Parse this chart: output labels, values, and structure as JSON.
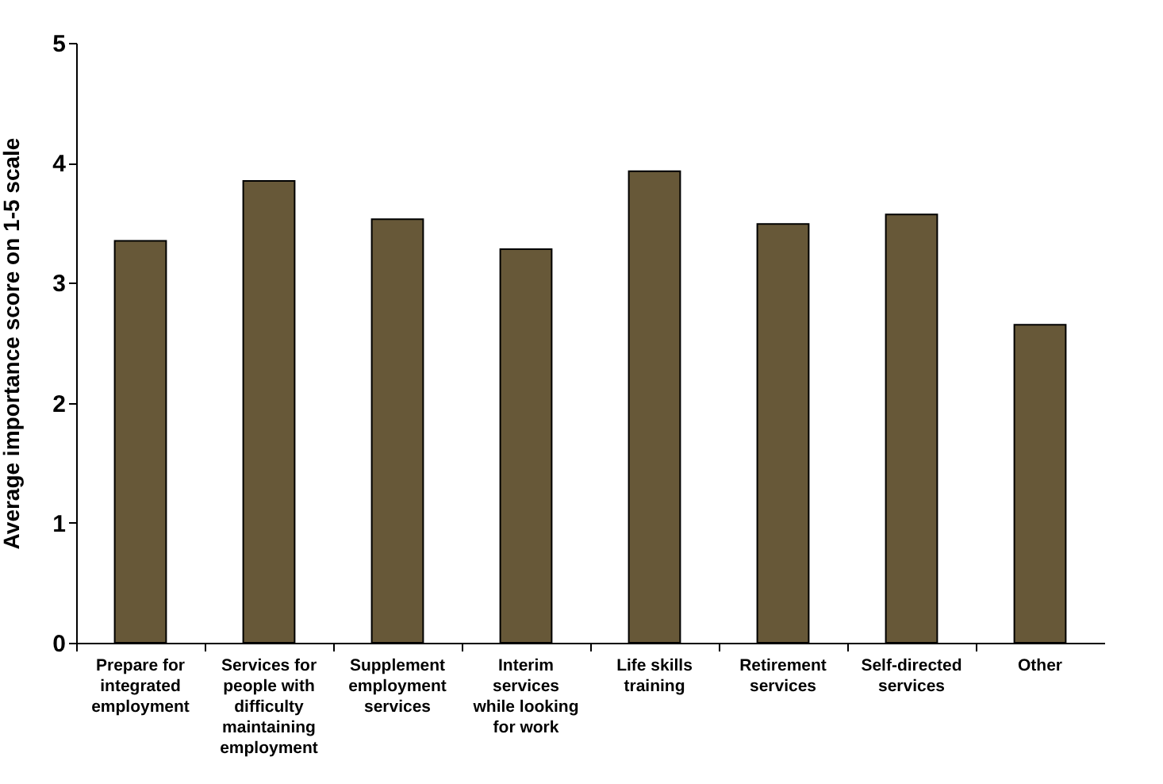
{
  "chart_data": {
    "type": "bar",
    "ylabel": "Average importance score on 1-5 scale",
    "categories": [
      "Prepare for integrated employment",
      "Services for people with difficulty maintaining employment",
      "Supplement employment services",
      "Interim services while looking for work",
      "Life skills training",
      "Retirement services",
      "Self-directed services",
      "Other"
    ],
    "values": [
      3.35,
      3.85,
      3.53,
      3.28,
      3.93,
      3.49,
      3.57,
      2.65
    ],
    "color": "#675838",
    "ylim": [
      0,
      5
    ],
    "yticks": [
      0,
      1,
      2,
      3,
      4,
      5
    ],
    "grid": false
  }
}
